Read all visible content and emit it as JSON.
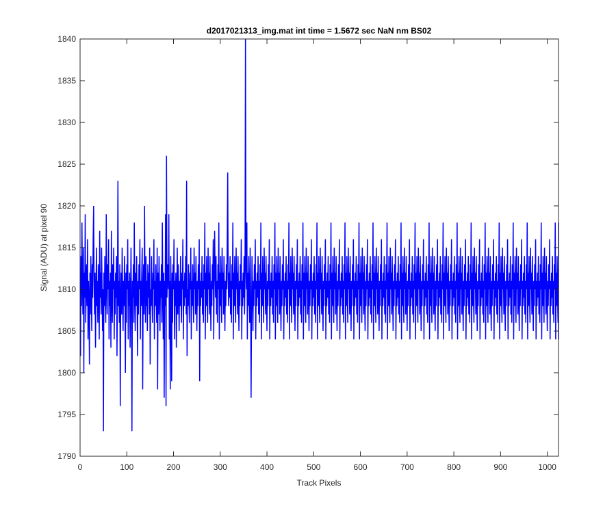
{
  "chart_data": {
    "type": "line",
    "title": "d2017021313_img.mat int time = 1.5672 sec  NaN nm BS02",
    "xlabel": "Track Pixels",
    "ylabel": "Signal (ADU) at pixel 90",
    "xlim": [
      0,
      1024
    ],
    "ylim": [
      1790,
      1840
    ],
    "xticks": [
      0,
      100,
      200,
      300,
      400,
      500,
      600,
      700,
      800,
      900,
      1000
    ],
    "yticks": [
      1790,
      1795,
      1800,
      1805,
      1810,
      1815,
      1820,
      1825,
      1830,
      1835,
      1840
    ],
    "grid": false,
    "legend": "none",
    "line_color": "#0000ff",
    "series": [
      {
        "x_start": 1,
        "x_step": 1,
        "values": [
          1802,
          1814,
          1808,
          1818,
          1811,
          1807,
          1815,
          1800,
          1812,
          1809,
          1819,
          1806,
          1810,
          1813,
          1808,
          1816,
          1804,
          1811,
          1809,
          1801,
          1812,
          1807,
          1814,
          1810,
          1805,
          1813,
          1809,
          1816,
          1820,
          1811,
          1807,
          1812,
          1803,
          1809,
          1815,
          1808,
          1811,
          1806,
          1813,
          1810,
          1804,
          1817,
          1809,
          1812,
          1807,
          1815,
          1811,
          1805,
          1810,
          1793,
          1812,
          1808,
          1814,
          1809,
          1806,
          1819,
          1811,
          1807,
          1813,
          1810,
          1816,
          1804,
          1811,
          1808,
          1812,
          1803,
          1817,
          1809,
          1806,
          1813,
          1810,
          1815,
          1804,
          1811,
          1807,
          1812,
          1809,
          1814,
          1802,
          1810,
          1823,
          1808,
          1811,
          1806,
          1813,
          1796,
          1809,
          1812,
          1807,
          1815,
          1810,
          1805,
          1811,
          1808,
          1814,
          1809,
          1800,
          1812,
          1806,
          1813,
          1810,
          1816,
          1804,
          1811,
          1808,
          1812,
          1803,
          1809,
          1815,
          1807,
          1793,
          1811,
          1809,
          1813,
          1806,
          1818,
          1810,
          1805,
          1812,
          1808,
          1814,
          1809,
          1802,
          1811,
          1807,
          1813,
          1810,
          1816,
          1804,
          1811,
          1808,
          1812,
          1815,
          1798,
          1809,
          1813,
          1807,
          1820,
          1810,
          1806,
          1814,
          1808,
          1811,
          1805,
          1813,
          1809,
          1812,
          1807,
          1815,
          1801,
          1810,
          1808,
          1814,
          1809,
          1806,
          1812,
          1810,
          1816,
          1804,
          1811,
          1808,
          1813,
          1809,
          1806,
          1815,
          1798,
          1812,
          1807,
          1814,
          1810,
          1805,
          1811,
          1809,
          1813,
          1806,
          1818,
          1810,
          1804,
          1812,
          1797,
          1811,
          1808,
          1819,
          1796,
          1826,
          1809,
          1812,
          1813,
          1810,
          1819,
          1804,
          1811,
          1798,
          1814,
          1809,
          1799,
          1812,
          1806,
          1813,
          1810,
          1816,
          1804,
          1811,
          1808,
          1812,
          1803,
          1809,
          1815,
          1807,
          1813,
          1810,
          1805,
          1811,
          1808,
          1814,
          1809,
          1806,
          1812,
          1810,
          1816,
          1804,
          1811,
          1808,
          1812,
          1809,
          1814,
          1807,
          1823,
          1802,
          1810,
          1808,
          1813,
          1809,
          1806,
          1812,
          1810,
          1815,
          1804,
          1811,
          1808,
          1813,
          1809,
          1806,
          1815,
          1810,
          1812,
          1807,
          1814,
          1809,
          1805,
          1811,
          1808,
          1813,
          1810,
          1816,
          1799,
          1811,
          1808,
          1812,
          1809,
          1814,
          1807,
          1811,
          1806,
          1813,
          1810,
          1818,
          1804,
          1812,
          1808,
          1814,
          1809,
          1806,
          1815,
          1810,
          1812,
          1807,
          1814,
          1809,
          1805,
          1811,
          1808,
          1813,
          1810,
          1816,
          1804,
          1811,
          1817,
          1812,
          1809,
          1814,
          1807,
          1811,
          1806,
          1813,
          1810,
          1818,
          1804,
          1812,
          1808,
          1814,
          1809,
          1806,
          1815,
          1810,
          1812,
          1807,
          1814,
          1809,
          1805,
          1811,
          1808,
          1813,
          1810,
          1816,
          1824,
          1811,
          1808,
          1812,
          1809,
          1814,
          1807,
          1811,
          1806,
          1813,
          1810,
          1818,
          1804,
          1812,
          1808,
          1814,
          1809,
          1806,
          1815,
          1810,
          1812,
          1807,
          1814,
          1809,
          1805,
          1811,
          1808,
          1813,
          1810,
          1816,
          1804,
          1811,
          1808,
          1812,
          1809,
          1814,
          1807,
          1811,
          1840,
          1813,
          1810,
          1818,
          1804,
          1812,
          1808,
          1814,
          1809,
          1806,
          1815,
          1810,
          1797,
          1807,
          1814,
          1809,
          1805,
          1811,
          1808,
          1813,
          1810,
          1816,
          1804,
          1811,
          1808,
          1812,
          1809,
          1814,
          1807,
          1811,
          1806,
          1813,
          1810,
          1818,
          1804,
          1812,
          1808,
          1814,
          1809,
          1806,
          1815,
          1810,
          1812,
          1807,
          1814,
          1809,
          1805,
          1811,
          1808,
          1813,
          1810,
          1816,
          1804,
          1811,
          1808,
          1812,
          1809,
          1814,
          1807,
          1811,
          1806,
          1813,
          1810,
          1818,
          1804,
          1812,
          1808,
          1814,
          1809,
          1806,
          1815,
          1810,
          1812,
          1807,
          1814,
          1809,
          1805,
          1811,
          1808,
          1813,
          1810,
          1816,
          1804,
          1811,
          1808,
          1812,
          1809,
          1814,
          1807,
          1811,
          1806,
          1813,
          1810,
          1818,
          1804,
          1812,
          1808,
          1814,
          1809,
          1806,
          1815,
          1810,
          1812,
          1807,
          1814,
          1809,
          1805,
          1811,
          1808,
          1813,
          1810,
          1816,
          1804,
          1811,
          1808,
          1812,
          1809,
          1814,
          1807,
          1811,
          1806,
          1813,
          1810,
          1818,
          1804,
          1812,
          1808,
          1814,
          1809,
          1806,
          1815,
          1810,
          1812,
          1807,
          1814,
          1809,
          1805,
          1811,
          1808,
          1813,
          1810,
          1816,
          1804,
          1811,
          1808,
          1812,
          1809,
          1814,
          1807,
          1811,
          1806,
          1813,
          1810,
          1818,
          1804,
          1812,
          1808,
          1814,
          1809,
          1806,
          1815,
          1810,
          1812,
          1807,
          1814,
          1809,
          1805,
          1811,
          1808,
          1813,
          1810,
          1816,
          1804,
          1811,
          1808,
          1812,
          1809,
          1814,
          1807,
          1811,
          1806,
          1813,
          1810,
          1818,
          1804,
          1812,
          1808,
          1814,
          1809,
          1806,
          1815,
          1810,
          1812,
          1807,
          1814,
          1809,
          1805,
          1811,
          1808,
          1813,
          1810,
          1816,
          1804,
          1811,
          1808,
          1812,
          1809,
          1814,
          1807,
          1811,
          1806,
          1813,
          1810,
          1818,
          1804,
          1812,
          1808,
          1814,
          1809,
          1806,
          1815,
          1810,
          1812,
          1807,
          1814,
          1809,
          1805,
          1811,
          1808,
          1813,
          1810,
          1816,
          1804,
          1811,
          1808,
          1812,
          1809,
          1814,
          1807,
          1811,
          1806,
          1813,
          1810,
          1818,
          1804,
          1812,
          1808,
          1814,
          1809,
          1806,
          1815,
          1810,
          1812,
          1807,
          1814,
          1809,
          1805,
          1811,
          1808,
          1813,
          1810,
          1816,
          1804,
          1811,
          1808,
          1812,
          1809,
          1814,
          1807,
          1811,
          1806,
          1813,
          1810,
          1818,
          1804,
          1812,
          1808,
          1814,
          1809,
          1806,
          1815,
          1810,
          1812,
          1807,
          1814,
          1809,
          1805,
          1811,
          1808,
          1813,
          1810,
          1816,
          1804,
          1811,
          1808,
          1812,
          1809,
          1814,
          1807,
          1811,
          1806,
          1813,
          1810,
          1818,
          1804,
          1812,
          1808,
          1814,
          1809,
          1806,
          1815,
          1810,
          1812,
          1807,
          1814,
          1809,
          1805,
          1811,
          1808,
          1813,
          1810,
          1816,
          1804,
          1811,
          1808,
          1812,
          1809,
          1814,
          1807,
          1811,
          1806,
          1813,
          1810,
          1818,
          1804,
          1812,
          1808,
          1814,
          1809,
          1806,
          1815,
          1810,
          1812,
          1807,
          1814,
          1809,
          1805,
          1811,
          1808,
          1813,
          1810,
          1816,
          1804,
          1811,
          1808,
          1812,
          1809,
          1814,
          1807,
          1811,
          1806,
          1813,
          1810,
          1818,
          1804,
          1812,
          1808,
          1814,
          1809,
          1806,
          1815,
          1810,
          1812,
          1807,
          1814,
          1809,
          1805,
          1811,
          1808,
          1813,
          1810,
          1816,
          1804,
          1811,
          1808,
          1812,
          1809,
          1814,
          1807,
          1811,
          1806,
          1813,
          1810,
          1818,
          1804,
          1812,
          1808,
          1814,
          1809,
          1806,
          1815,
          1810,
          1812,
          1807,
          1814,
          1809,
          1805,
          1811,
          1808,
          1813,
          1810,
          1816,
          1804,
          1811,
          1808,
          1812,
          1809,
          1814,
          1807,
          1811,
          1806,
          1813,
          1810,
          1818,
          1804,
          1812,
          1808,
          1814,
          1809,
          1806,
          1815,
          1810,
          1812,
          1807,
          1814,
          1809,
          1805,
          1811,
          1808,
          1813,
          1810,
          1816,
          1804,
          1811,
          1808,
          1812,
          1809,
          1814,
          1807,
          1811,
          1806,
          1813,
          1810,
          1818,
          1804,
          1812,
          1808,
          1814,
          1809,
          1806,
          1815,
          1810,
          1812,
          1807,
          1814,
          1809,
          1805,
          1811,
          1808,
          1813,
          1810,
          1816,
          1804,
          1811,
          1808,
          1812,
          1809,
          1814,
          1807,
          1811,
          1806,
          1813,
          1810,
          1818,
          1804,
          1812,
          1808,
          1814,
          1809,
          1806,
          1815,
          1810,
          1812,
          1807,
          1814,
          1809,
          1805,
          1811,
          1808,
          1813,
          1810,
          1816,
          1804,
          1811,
          1808,
          1812,
          1809,
          1814,
          1807,
          1811,
          1806,
          1813,
          1810,
          1818,
          1804,
          1812,
          1808,
          1814,
          1809,
          1806,
          1815,
          1810,
          1812,
          1807,
          1814,
          1809,
          1805,
          1811,
          1808,
          1813,
          1810,
          1816,
          1804,
          1811,
          1808,
          1812,
          1809,
          1814,
          1807,
          1811,
          1806,
          1813,
          1810,
          1818,
          1804,
          1812,
          1808,
          1814,
          1809,
          1806,
          1815,
          1810,
          1812,
          1807,
          1814,
          1809,
          1805,
          1811,
          1808,
          1813,
          1810,
          1816,
          1804,
          1811,
          1808,
          1812,
          1809,
          1814,
          1807,
          1811,
          1806,
          1813,
          1810,
          1818,
          1804,
          1812,
          1808,
          1814,
          1809,
          1806,
          1815,
          1810,
          1812,
          1807,
          1814,
          1809,
          1805,
          1811,
          1808,
          1813,
          1810,
          1816,
          1804,
          1811,
          1808,
          1812,
          1809,
          1814,
          1807,
          1811,
          1806,
          1813,
          1810,
          1818,
          1804,
          1812,
          1808,
          1814,
          1809,
          1806,
          1815,
          1810,
          1812,
          1807,
          1814,
          1809,
          1805,
          1811,
          1808,
          1813,
          1810,
          1816,
          1804,
          1811,
          1808,
          1812,
          1809,
          1814,
          1807,
          1811,
          1806,
          1813,
          1810,
          1818,
          1804,
          1812,
          1808,
          1814,
          1809,
          1806,
          1815,
          1810,
          1812,
          1807,
          1814,
          1809,
          1805,
          1811,
          1808,
          1813,
          1810,
          1816,
          1804,
          1811,
          1808,
          1812,
          1809,
          1814,
          1807,
          1811,
          1806,
          1813,
          1810,
          1818,
          1804,
          1812,
          1808,
          1814,
          1809,
          1806,
          1815,
          1810,
          1812,
          1807,
          1814,
          1809,
          1805,
          1811,
          1808,
          1813,
          1810,
          1816,
          1804,
          1811,
          1808,
          1812,
          1809,
          1814,
          1807,
          1811,
          1806,
          1813,
          1810,
          1818,
          1804,
          1812,
          1808,
          1814,
          1809,
          1806,
          1815,
          1810,
          1812,
          1807,
          1814,
          1809,
          1805,
          1811,
          1808,
          1813,
          1810,
          1816,
          1804,
          1811,
          1808,
          1812,
          1809,
          1814,
          1807,
          1811,
          1806,
          1813,
          1810,
          1818,
          1804,
          1812,
          1808,
          1814,
          1809,
          1806
        ]
      }
    ]
  }
}
